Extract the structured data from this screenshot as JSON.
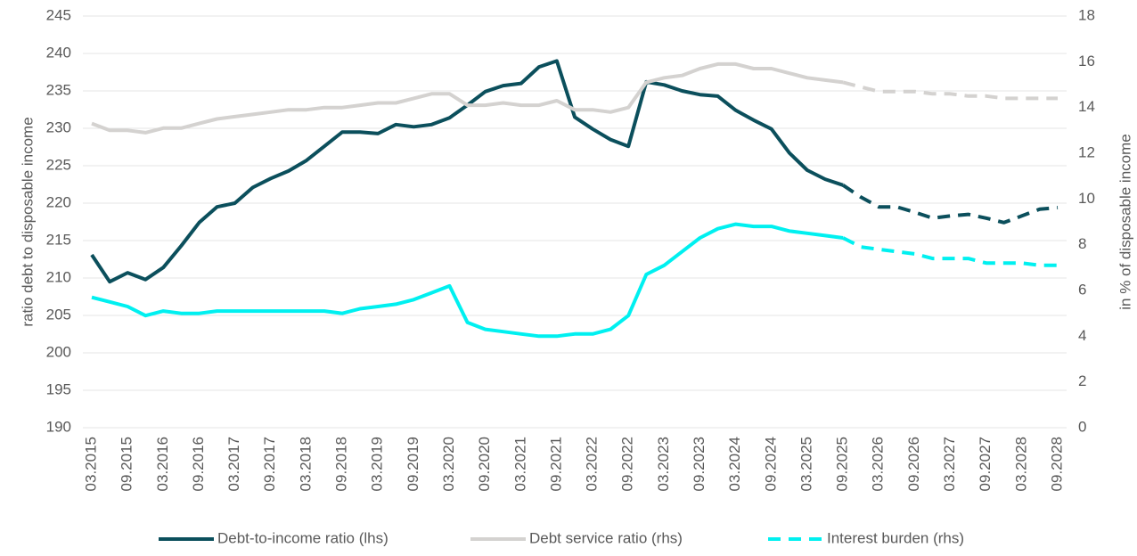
{
  "chart_data": {
    "type": "line",
    "ylabel": "ratio debt to disposable income",
    "y2label": "in % of disposable income",
    "categories": [
      "03.2015",
      null,
      "09.2015",
      null,
      "03.2016",
      null,
      "09.2016",
      null,
      "03.2017",
      null,
      "09.2017",
      null,
      "03.2018",
      null,
      "09.2018",
      null,
      "03.2019",
      null,
      "09.2019",
      null,
      "03.2020",
      null,
      "09.2020",
      null,
      "03.2021",
      null,
      "09.2021",
      null,
      "03.2022",
      null,
      "09.2022",
      null,
      "03.2023",
      null,
      "09.2023",
      null,
      "03.2024",
      null,
      "09.2024",
      null,
      "03.2025",
      null,
      "09.2025",
      null,
      "03.2026",
      null,
      "09.2026",
      null,
      "03.2027",
      null,
      "09.2027",
      null,
      "03.2028",
      null,
      "09.2028"
    ],
    "forecast_from": "09.2025",
    "ylim": [
      190,
      245
    ],
    "yticks": [
      190,
      195,
      200,
      205,
      210,
      215,
      220,
      225,
      230,
      235,
      240,
      245
    ],
    "y2lim": [
      0,
      18
    ],
    "y2ticks": [
      0,
      2,
      4,
      6,
      8,
      10,
      12,
      14,
      16,
      18
    ],
    "grid": true,
    "legend": "bottom",
    "series": [
      {
        "name": "Debt-to-income ratio (lhs)",
        "color": "#0b4f5c",
        "axis": "y",
        "legend_dash": false,
        "values": [
          213.1,
          209.5,
          210.7,
          209.8,
          211.4,
          214.3,
          217.4,
          219.5,
          220.0,
          222.1,
          223.3,
          224.3,
          225.7,
          227.6,
          229.5,
          229.5,
          229.3,
          230.5,
          230.2,
          230.5,
          231.4,
          233.1,
          234.9,
          235.7,
          236.0,
          238.2,
          239.0,
          231.5,
          229.9,
          228.5,
          227.6,
          236.2,
          235.8,
          235.0,
          234.5,
          234.3,
          232.4,
          231.1,
          229.9,
          226.7,
          224.4,
          223.2,
          222.4,
          220.8,
          219.5,
          219.5,
          218.8,
          218.0,
          218.3,
          218.5,
          218.0,
          217.4,
          218.3,
          219.2,
          219.4
        ]
      },
      {
        "name": "Debt service ratio (rhs)",
        "color": "#d4d2d0",
        "axis": "y2",
        "legend_dash": false,
        "values": [
          13.3,
          13.0,
          13.0,
          12.9,
          13.1,
          13.1,
          13.3,
          13.5,
          13.6,
          13.7,
          13.8,
          13.9,
          13.9,
          14.0,
          14.0,
          14.1,
          14.2,
          14.2,
          14.4,
          14.6,
          14.6,
          14.1,
          14.1,
          14.2,
          14.1,
          14.1,
          14.3,
          13.9,
          13.9,
          13.8,
          14.0,
          15.1,
          15.3,
          15.4,
          15.7,
          15.9,
          15.9,
          15.7,
          15.7,
          15.5,
          15.3,
          15.2,
          15.1,
          14.9,
          14.7,
          14.7,
          14.7,
          14.6,
          14.6,
          14.5,
          14.5,
          14.4,
          14.4,
          14.4,
          14.4
        ]
      },
      {
        "name": "Interest burden (rhs)",
        "color": "#00f0f0",
        "axis": "y2",
        "legend_dash": true,
        "values": [
          5.7,
          5.5,
          5.3,
          4.9,
          5.1,
          5.0,
          5.0,
          5.1,
          5.1,
          5.1,
          5.1,
          5.1,
          5.1,
          5.1,
          5.0,
          5.2,
          5.3,
          5.4,
          5.6,
          5.9,
          6.2,
          4.6,
          4.3,
          4.2,
          4.1,
          4.0,
          4.0,
          4.1,
          4.1,
          4.3,
          4.9,
          6.7,
          7.1,
          7.7,
          8.3,
          8.7,
          8.9,
          8.8,
          8.8,
          8.6,
          8.5,
          8.4,
          8.3,
          7.9,
          7.8,
          7.7,
          7.6,
          7.4,
          7.4,
          7.4,
          7.2,
          7.2,
          7.2,
          7.1,
          7.1
        ]
      }
    ]
  }
}
